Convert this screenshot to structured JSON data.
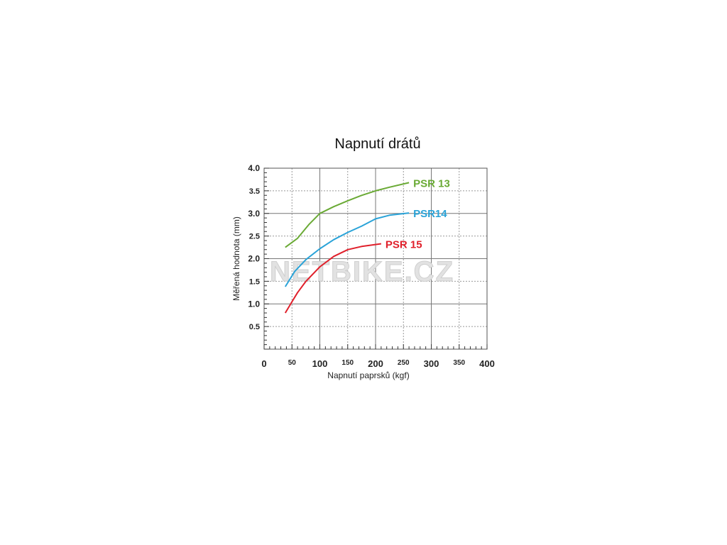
{
  "chart_data": {
    "type": "line",
    "title": "Napnutí drátů",
    "xlabel": "Napnutí paprsků (kgf)",
    "ylabel": "Měřená hodnota (mm)",
    "xlim": [
      0,
      400
    ],
    "ylim": [
      0,
      4.0
    ],
    "x_ticks": [
      "0",
      "50",
      "100",
      "150",
      "200",
      "250",
      "300",
      "350",
      "400"
    ],
    "y_ticks": [
      "0.5",
      "1.0",
      "1.5",
      "2.0",
      "2.5",
      "3.0",
      "3.5",
      "4.0"
    ],
    "grid": true,
    "watermark": "NETBIKE.CZ",
    "series": [
      {
        "name": "PSR 13",
        "color": "#6aaa35",
        "x": [
          38,
          60,
          80,
          100,
          125,
          150,
          175,
          200,
          225,
          260
        ],
        "y": [
          2.25,
          2.45,
          2.75,
          3.0,
          3.15,
          3.28,
          3.4,
          3.5,
          3.58,
          3.68
        ]
      },
      {
        "name": "PSR14",
        "color": "#2aa3d8",
        "x": [
          38,
          55,
          75,
          100,
          125,
          150,
          175,
          200,
          225,
          260
        ],
        "y": [
          1.38,
          1.72,
          1.98,
          2.22,
          2.42,
          2.58,
          2.72,
          2.88,
          2.96,
          3.01
        ]
      },
      {
        "name": "PSR 15",
        "color": "#e0202b",
        "x": [
          38,
          50,
          60,
          75,
          100,
          125,
          150,
          175,
          210
        ],
        "y": [
          0.8,
          1.05,
          1.25,
          1.5,
          1.82,
          2.05,
          2.2,
          2.27,
          2.33
        ]
      }
    ]
  }
}
